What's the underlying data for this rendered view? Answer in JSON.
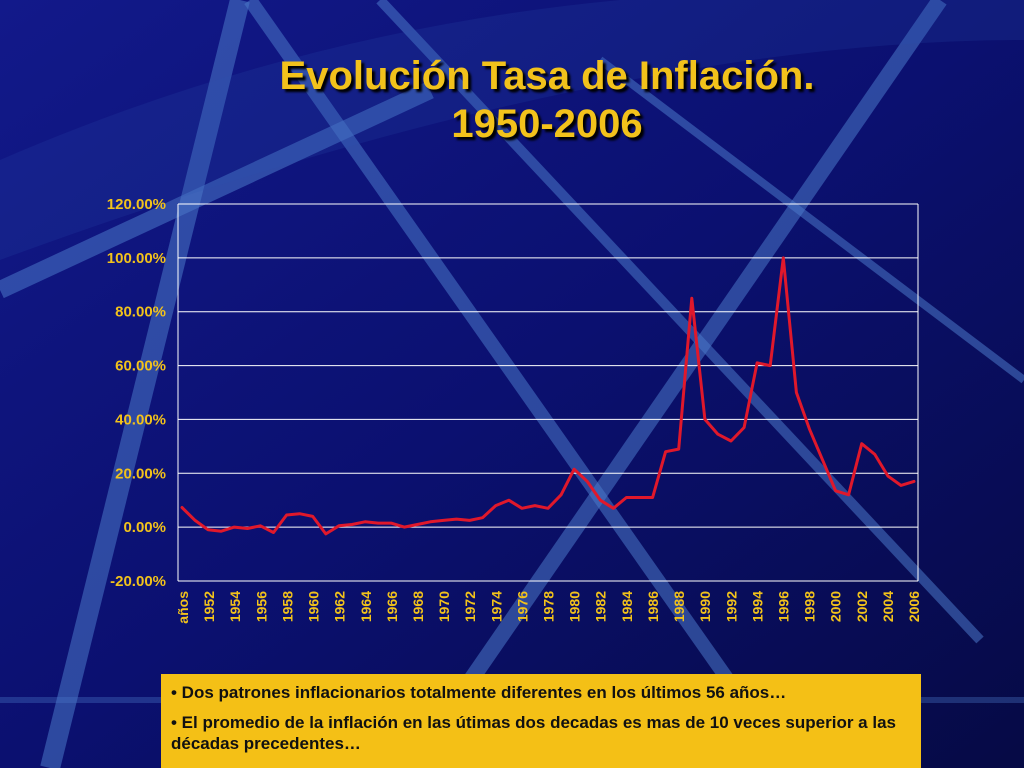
{
  "slide": {
    "title_line1": "Evolución Tasa de Inflación.",
    "title_line2": "1950-2006",
    "notes": [
      "• Dos patrones inflacionarios totalmente diferentes en los últimos 56 años…",
      "• El promedio de la inflación en las útimas dos decadas es mas de 10 veces superior a las décadas precedentes…"
    ],
    "colors": {
      "background": "#0a0f5c",
      "title": "#f2c21b",
      "line": "#e0182b",
      "notes_box": "#f4c016"
    }
  },
  "chart_data": {
    "type": "line",
    "title": "",
    "xlabel": "",
    "ylabel": "",
    "ylim": [
      -20,
      120
    ],
    "y_ticks": [
      "120.00%",
      "100.00%",
      "80.00%",
      "60.00%",
      "40.00%",
      "20.00%",
      "0.00%",
      "-20.00%"
    ],
    "x_tick_labels": [
      "años",
      "1952",
      "1954",
      "1956",
      "1958",
      "1960",
      "1962",
      "1964",
      "1966",
      "1968",
      "1970",
      "1972",
      "1974",
      "1976",
      "1978",
      "1980",
      "1982",
      "1984",
      "1986",
      "1988",
      "1990",
      "1992",
      "1994",
      "1996",
      "1998",
      "2000",
      "2002",
      "2004",
      "2006"
    ],
    "grid": "horizontal",
    "legend": "none",
    "x": [
      1950,
      1951,
      1952,
      1953,
      1954,
      1955,
      1956,
      1957,
      1958,
      1959,
      1960,
      1961,
      1962,
      1963,
      1964,
      1965,
      1966,
      1967,
      1968,
      1969,
      1970,
      1971,
      1972,
      1973,
      1974,
      1975,
      1976,
      1977,
      1978,
      1979,
      1980,
      1981,
      1982,
      1983,
      1984,
      1985,
      1986,
      1987,
      1988,
      1989,
      1990,
      1991,
      1992,
      1993,
      1994,
      1995,
      1996,
      1997,
      1998,
      1999,
      2000,
      2001,
      2002,
      2003,
      2004,
      2005,
      2006
    ],
    "series": [
      {
        "values": [
          7.3,
          2.5,
          -1.0,
          -1.5,
          0.0,
          -0.5,
          0.5,
          -2.0,
          4.5,
          5.0,
          4.0,
          -2.5,
          0.5,
          1.0,
          2.0,
          1.5,
          1.5,
          0.0,
          1.0,
          2.0,
          2.5,
          3.0,
          2.5,
          3.5,
          8.0,
          10.0,
          7.0,
          8.0,
          7.0,
          12.0,
          21.5,
          17.0,
          10.0,
          7.0,
          11.0,
          11.0,
          11.0,
          28.0,
          29.0,
          85.0,
          40.0,
          34.5,
          32.0,
          37.0,
          61.0,
          60.0,
          100.0,
          50.0,
          36.5,
          25.0,
          13.5,
          12.0,
          31.0,
          27.0,
          19.0,
          15.5,
          17.0
        ]
      }
    ]
  }
}
